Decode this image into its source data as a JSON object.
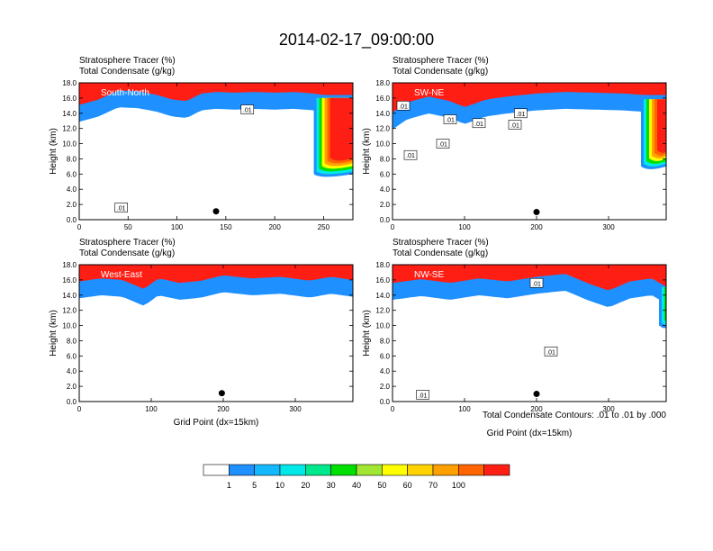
{
  "figure": {
    "title": "2014-02-17_09:00:00",
    "subtitle_line1": "Stratosphere Tracer   (%)",
    "subtitle_line2": "Total Condensate   (g/kg)",
    "contour_note": "Total Condensate Contours: .01 to .01 by .000"
  },
  "chart_data": [
    {
      "type": "heatmap",
      "panel_label": "South-North",
      "ylabel": "Height (km)",
      "xlabel": "",
      "xlim": [
        0,
        280
      ],
      "ylim": [
        0,
        18
      ],
      "xticks": [
        "0",
        "50",
        "100",
        "150",
        "200",
        "250"
      ],
      "yticks": [
        "0.0",
        "2.0",
        "4.0",
        "6.0",
        "8.0",
        "10.0",
        "12.0",
        "14.0",
        "16.0",
        "18.0"
      ],
      "tropopause_profile": [
        [
          0,
          14.5
        ],
        [
          20,
          15.2
        ],
        [
          40,
          16.4
        ],
        [
          60,
          16.3
        ],
        [
          80,
          15.8
        ],
        [
          95,
          15.2
        ],
        [
          110,
          15.0
        ],
        [
          125,
          16.0
        ],
        [
          140,
          16.2
        ],
        [
          160,
          16.1
        ],
        [
          180,
          16.2
        ],
        [
          200,
          16.1
        ],
        [
          220,
          16.2
        ],
        [
          240,
          16.0
        ],
        [
          250,
          15.8
        ]
      ],
      "intrusion": {
        "x": [
          240,
          280
        ],
        "low_km": 6.0
      },
      "contour_labels": [
        {
          "x": 172,
          "y": 14.5,
          "text": ".01"
        },
        {
          "x": 43,
          "y": 1.6,
          "text": ".01"
        }
      ],
      "marker": {
        "x": 140,
        "y": 1.1
      }
    },
    {
      "type": "heatmap",
      "panel_label": "SW-NE",
      "ylabel": "Height (km)",
      "xlabel": "",
      "xlim": [
        0,
        380
      ],
      "ylim": [
        0,
        18
      ],
      "xticks": [
        "0",
        "100",
        "200",
        "300"
      ],
      "yticks": [
        "0.0",
        "2.0",
        "4.0",
        "6.0",
        "8.0",
        "10.0",
        "12.0",
        "14.0",
        "16.0",
        "18.0"
      ],
      "tropopause_profile": [
        [
          0,
          13.5
        ],
        [
          20,
          14.8
        ],
        [
          50,
          15.6
        ],
        [
          80,
          15.0
        ],
        [
          100,
          14.2
        ],
        [
          130,
          15.2
        ],
        [
          160,
          15.6
        ],
        [
          200,
          16.0
        ],
        [
          240,
          16.2
        ],
        [
          280,
          16.1
        ],
        [
          320,
          16.0
        ],
        [
          350,
          15.8
        ]
      ],
      "intrusion": {
        "x": [
          345,
          380
        ],
        "low_km": 7.0
      },
      "contour_labels": [
        {
          "x": 15,
          "y": 15.0,
          "text": ".01"
        },
        {
          "x": 80,
          "y": 13.2,
          "text": ".01"
        },
        {
          "x": 120,
          "y": 12.7,
          "text": ".01"
        },
        {
          "x": 170,
          "y": 12.5,
          "text": ".01"
        },
        {
          "x": 178,
          "y": 14.0,
          "text": ".01"
        },
        {
          "x": 25,
          "y": 8.5,
          "text": ".01"
        },
        {
          "x": 70,
          "y": 10.0,
          "text": ".01"
        }
      ],
      "marker": {
        "x": 200,
        "y": 1.0
      }
    },
    {
      "type": "heatmap",
      "panel_label": "West-East",
      "ylabel": "Height (km)",
      "xlabel": "Grid Point (dx=15km)",
      "xlim": [
        0,
        380
      ],
      "ylim": [
        0,
        18
      ],
      "xticks": [
        "0",
        "100",
        "200",
        "300"
      ],
      "yticks": [
        "0.0",
        "2.0",
        "4.0",
        "6.0",
        "8.0",
        "10.0",
        "12.0",
        "14.0",
        "16.0",
        "18.0"
      ],
      "tropopause_profile": [
        [
          0,
          15.2
        ],
        [
          30,
          15.6
        ],
        [
          60,
          15.4
        ],
        [
          90,
          14.2
        ],
        [
          110,
          15.6
        ],
        [
          140,
          15.0
        ],
        [
          170,
          15.3
        ],
        [
          200,
          16.0
        ],
        [
          240,
          15.6
        ],
        [
          280,
          15.8
        ],
        [
          320,
          15.3
        ],
        [
          350,
          15.8
        ],
        [
          380,
          15.4
        ]
      ],
      "intrusion": null,
      "contour_labels": [],
      "marker": {
        "x": 198,
        "y": 1.1
      }
    },
    {
      "type": "heatmap",
      "panel_label": "NW-SE",
      "ylabel": "Height (km)",
      "xlabel": "Grid Point (dx=15km)",
      "xlim": [
        0,
        380
      ],
      "ylim": [
        0,
        18
      ],
      "xticks": [
        "0",
        "100",
        "200",
        "300"
      ],
      "yticks": [
        "0.0",
        "2.0",
        "4.0",
        "6.0",
        "8.0",
        "10.0",
        "12.0",
        "14.0",
        "16.0",
        "18.0"
      ],
      "tropopause_profile": [
        [
          0,
          15.0
        ],
        [
          40,
          15.5
        ],
        [
          80,
          15.0
        ],
        [
          120,
          15.6
        ],
        [
          160,
          15.2
        ],
        [
          200,
          15.8
        ],
        [
          240,
          16.2
        ],
        [
          270,
          15.0
        ],
        [
          300,
          14.0
        ],
        [
          330,
          15.2
        ],
        [
          360,
          15.6
        ],
        [
          380,
          14.5
        ]
      ],
      "intrusion": {
        "x": [
          370,
          380
        ],
        "low_km": 10.0
      },
      "contour_labels": [
        {
          "x": 220,
          "y": 6.6,
          "text": ".01"
        },
        {
          "x": 200,
          "y": 15.6,
          "text": ".01"
        },
        {
          "x": 42,
          "y": 0.9,
          "text": ".01"
        }
      ],
      "marker": {
        "x": 200,
        "y": 1.0
      }
    }
  ],
  "colorbar": {
    "colors": [
      "#ffffff",
      "#1e90ff",
      "#14b8ff",
      "#00e8e8",
      "#00e88c",
      "#00e000",
      "#a0e632",
      "#ffff00",
      "#ffd200",
      "#ffa000",
      "#ff6400",
      "#ff1e14"
    ],
    "labels": [
      "1",
      "5",
      "10",
      "20",
      "30",
      "40",
      "50",
      "60",
      "70",
      "100"
    ]
  }
}
